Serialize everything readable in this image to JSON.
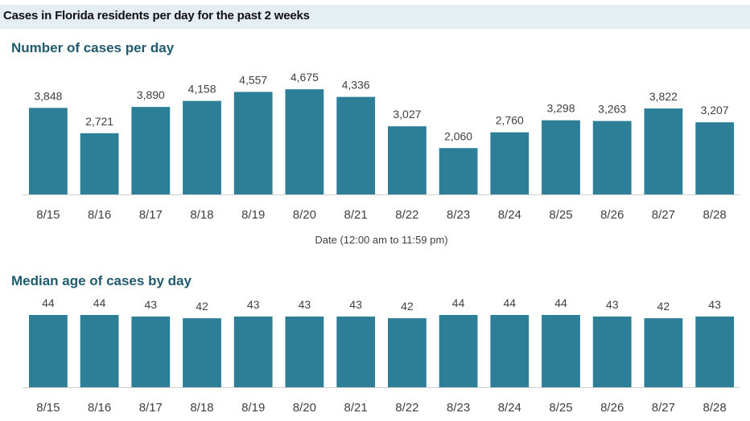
{
  "main_title": "Cases in Florida residents per day for the past 2 weeks",
  "colors": {
    "bar": "#2c7f96",
    "header_band": "#e4eef3",
    "panel_title": "#1f5a6e",
    "axis": "#d0d0d0"
  },
  "chart_data": [
    {
      "type": "bar",
      "title": "Number of cases per day",
      "xlabel": "Date (12:00 am to 11:59 pm)",
      "ylabel": "",
      "categories": [
        "8/15",
        "8/16",
        "8/17",
        "8/18",
        "8/19",
        "8/20",
        "8/21",
        "8/22",
        "8/23",
        "8/24",
        "8/25",
        "8/26",
        "8/27",
        "8/28"
      ],
      "values": [
        3848,
        2721,
        3890,
        4158,
        4557,
        4675,
        4336,
        3027,
        2060,
        2760,
        3298,
        3263,
        3822,
        3207
      ],
      "value_labels": [
        "3,848",
        "2,721",
        "3,890",
        "4,158",
        "4,557",
        "4,675",
        "4,336",
        "3,027",
        "2,060",
        "2,760",
        "3,298",
        "3,263",
        "3,822",
        "3,207"
      ],
      "ylim": [
        0,
        5000
      ],
      "grid": false,
      "legend": "none"
    },
    {
      "type": "bar",
      "title": "Median age of cases by day",
      "xlabel": "",
      "ylabel": "",
      "categories": [
        "8/15",
        "8/16",
        "8/17",
        "8/18",
        "8/19",
        "8/20",
        "8/21",
        "8/22",
        "8/23",
        "8/24",
        "8/25",
        "8/26",
        "8/27",
        "8/28"
      ],
      "values": [
        44,
        44,
        43,
        42,
        43,
        43,
        43,
        42,
        44,
        44,
        44,
        43,
        42,
        43
      ],
      "value_labels": [
        "44",
        "44",
        "43",
        "42",
        "43",
        "43",
        "43",
        "42",
        "44",
        "44",
        "44",
        "43",
        "42",
        "43"
      ],
      "ylim": [
        0,
        44
      ],
      "grid": false,
      "legend": "none"
    }
  ]
}
